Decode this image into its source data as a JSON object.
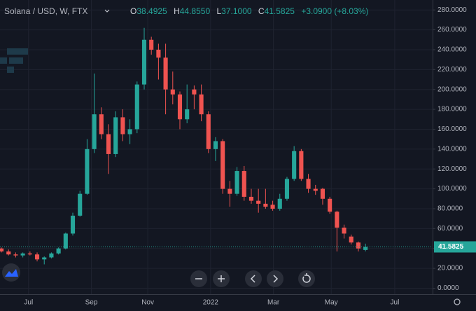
{
  "chart_data": {
    "type": "candlestick",
    "title": "Solana / USD, W, FTX",
    "header_labels": {
      "open_prefix": "O",
      "open": "38.4925",
      "high_prefix": "H",
      "high": "44.8550",
      "low_prefix": "L",
      "low": "37.1000",
      "close_prefix": "C",
      "close": "41.5825",
      "change": "+3.0900 (+8.03%)"
    },
    "last_price_label": "41.5825",
    "up_color": "#26a69a",
    "down_color": "#ef5350",
    "open": [
      40,
      37,
      34,
      33,
      35,
      34,
      29,
      31,
      35,
      40,
      55,
      73,
      95,
      140,
      175,
      155,
      135,
      172,
      155,
      160,
      205,
      250,
      240,
      232,
      200,
      195,
      170,
      200,
      195,
      175,
      140,
      148,
      100,
      95,
      118,
      92,
      88,
      85,
      84,
      80,
      90,
      110,
      138,
      110,
      100,
      100,
      90,
      77,
      61,
      52,
      46,
      38.4925
    ],
    "high": [
      41,
      39,
      36,
      36,
      37,
      36,
      32,
      36,
      41,
      56,
      76,
      98,
      150,
      216,
      182,
      165,
      178,
      180,
      170,
      208,
      262,
      253,
      246,
      246,
      218,
      198,
      205,
      204,
      205,
      178,
      152,
      150,
      108,
      122,
      123,
      100,
      100,
      100,
      88,
      95,
      112,
      143,
      140,
      115,
      104,
      101,
      92,
      78,
      64,
      54,
      47,
      44.855
    ],
    "low": [
      36,
      33,
      31,
      31,
      33,
      27,
      24,
      30,
      34,
      39,
      53,
      72,
      94,
      136,
      150,
      115,
      132,
      148,
      145,
      156,
      200,
      235,
      210,
      175,
      185,
      160,
      166,
      180,
      168,
      136,
      128,
      95,
      82,
      93,
      88,
      85,
      76,
      80,
      78,
      78,
      88,
      108,
      108,
      96,
      94,
      84,
      75,
      37,
      50,
      44,
      37,
      37.1
    ],
    "close": [
      37,
      34,
      33,
      35,
      34,
      29,
      31,
      35,
      40,
      55,
      73,
      95,
      140,
      175,
      155,
      135,
      172,
      155,
      160,
      205,
      250,
      240,
      232,
      200,
      195,
      170,
      180,
      195,
      175,
      140,
      148,
      100,
      95,
      118,
      92,
      88,
      85,
      82,
      80,
      90,
      110,
      138,
      110,
      100,
      98,
      90,
      77,
      61,
      55,
      46,
      40,
      41.5825
    ],
    "xlim": [
      -0.2,
      60.4
    ],
    "xticks": [
      {
        "value": 3.8,
        "label": "Jul"
      },
      {
        "value": 12.6,
        "label": "Sep"
      },
      {
        "value": 20.5,
        "label": "Nov"
      },
      {
        "value": 29.3,
        "label": "2022"
      },
      {
        "value": 38.1,
        "label": "Mar"
      },
      {
        "value": 46.2,
        "label": "May"
      },
      {
        "value": 55.1,
        "label": "Jul"
      }
    ],
    "ylim": [
      -6,
      290
    ],
    "yticks": [
      {
        "value": 0,
        "label": "0.0000"
      },
      {
        "value": 20,
        "label": "20.0000"
      },
      {
        "value": 40,
        "label": "40.0000"
      },
      {
        "value": 60,
        "label": "60.0000"
      },
      {
        "value": 80,
        "label": "80.0000"
      },
      {
        "value": 100,
        "label": "100.0000"
      },
      {
        "value": 120,
        "label": "120.0000"
      },
      {
        "value": 140,
        "label": "140.0000"
      },
      {
        "value": 160,
        "label": "160.0000"
      },
      {
        "value": 180,
        "label": "180.0000"
      },
      {
        "value": 200,
        "label": "200.0000"
      },
      {
        "value": 220,
        "label": "220.0000"
      },
      {
        "value": 240,
        "label": "240.0000"
      },
      {
        "value": 260,
        "label": "260.0000"
      },
      {
        "value": 280,
        "label": "280.0000"
      }
    ],
    "grid": true
  }
}
